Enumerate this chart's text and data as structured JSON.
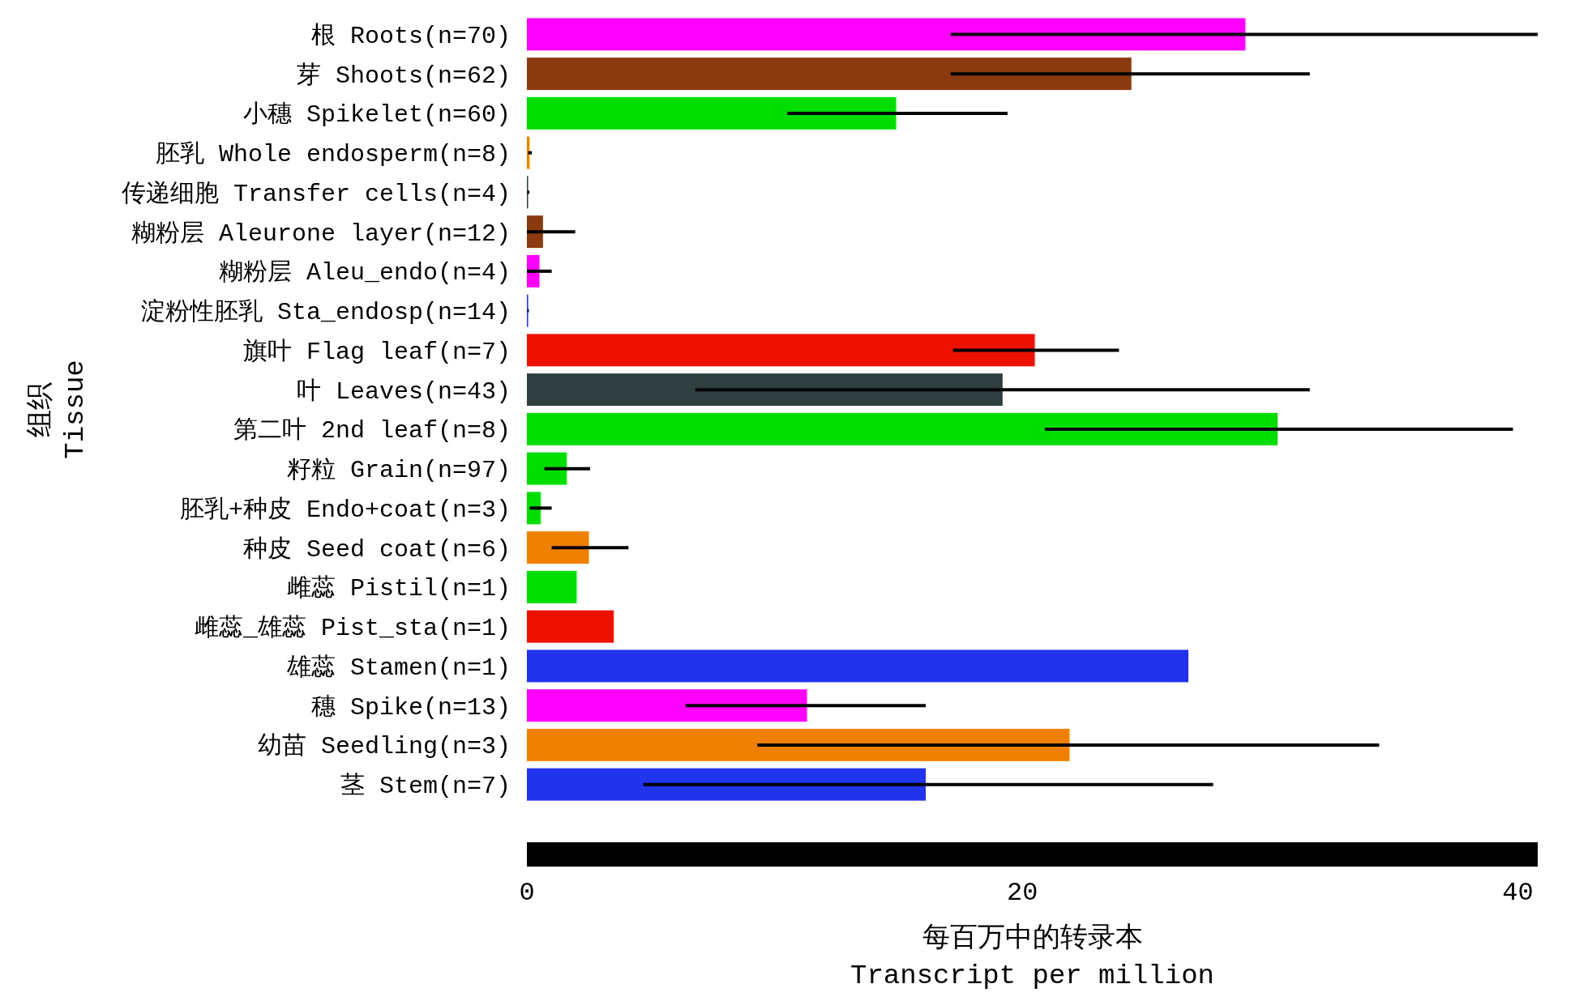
{
  "chart_data": {
    "type": "bar",
    "orientation": "horizontal",
    "xlabel": "每百万中的转录本\nTranscript per million",
    "ylabel": "组织\nTissue",
    "categories": [
      "根 Roots(n=70)",
      "芽 Shoots(n=62)",
      "小穗 Spikelet(n=60)",
      "胚乳 Whole endosperm(n=8)",
      "传递细胞 Transfer cells(n=4)",
      "糊粉层 Aleurone layer(n=12)",
      "糊粉层 Aleu_endo(n=4)",
      "淀粉性胚乳 Sta_endosp(n=14)",
      "旗叶 Flag leaf(n=7)",
      "叶 Leaves(n=43)",
      "第二叶 2nd leaf(n=8)",
      "籽粒 Grain(n=97)",
      "胚乳+种皮 Endo+coat(n=3)",
      "种皮 Seed coat(n=6)",
      "雌蕊 Pistil(n=1)",
      "雌蕊_雄蕊 Pist_sta(n=1)",
      "雄蕊 Stamen(n=1)",
      "穗 Spike(n=13)",
      "幼苗 Seedling(n=3)",
      "茎 Stem(n=7)"
    ],
    "values": [
      29.0,
      24.4,
      14.9,
      0.1,
      0.05,
      0.65,
      0.5,
      0.05,
      20.5,
      19.2,
      30.3,
      1.6,
      0.55,
      2.5,
      2.0,
      3.5,
      26.7,
      11.3,
      21.9,
      16.1
    ],
    "colors": [
      "#ff00ff",
      "#8b3a0f",
      "#00dd00",
      "#f08000",
      "#2f3f3f",
      "#8b3a0f",
      "#ff00ff",
      "#2233ee",
      "#ee1100",
      "#2f3f3f",
      "#00dd00",
      "#00dd00",
      "#00dd00",
      "#f08000",
      "#00dd00",
      "#ee1100",
      "#2233ee",
      "#ff00ff",
      "#f08000",
      "#2233ee"
    ],
    "errors": [
      [
        17.1,
        40.8
      ],
      [
        17.1,
        31.6
      ],
      [
        10.5,
        19.4
      ],
      [
        0.05,
        0.2
      ],
      [
        0.02,
        0.1
      ],
      [
        0,
        1.95
      ],
      [
        0,
        1.0
      ],
      [
        0.02,
        0.08
      ],
      [
        17.2,
        23.9
      ],
      [
        6.8,
        31.6
      ],
      [
        20.9,
        39.8
      ],
      [
        0.7,
        2.55
      ],
      [
        0.1,
        1.0
      ],
      [
        1.0,
        4.1
      ],
      null,
      null,
      null,
      [
        6.4,
        16.1
      ],
      [
        9.3,
        34.4
      ],
      [
        4.7,
        27.7
      ]
    ],
    "xlim": [
      0,
      40.8
    ],
    "xticks": [
      0,
      20,
      40
    ],
    "grid": false
  }
}
